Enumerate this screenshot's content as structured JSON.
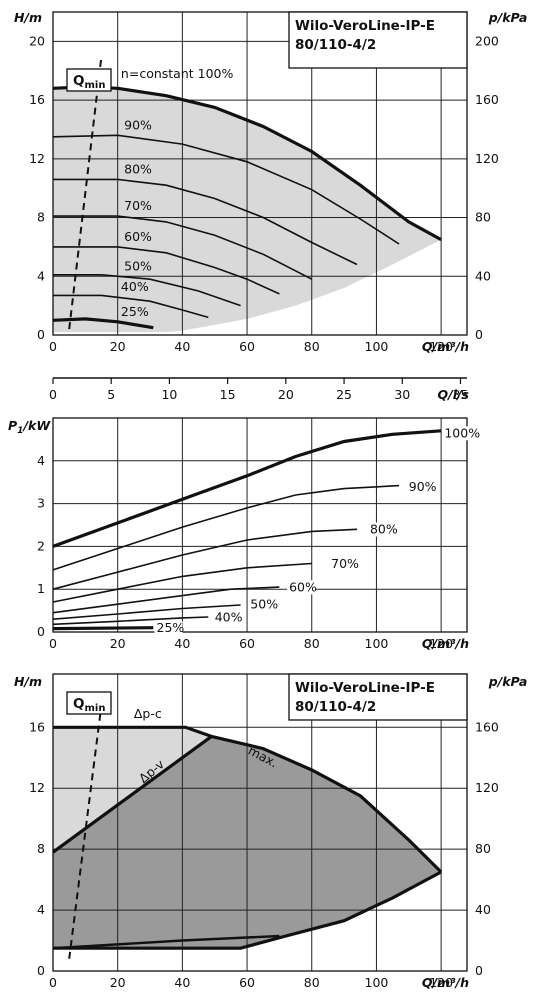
{
  "colors": {
    "field": "#d9d9d9",
    "field_dark": "#9a9a9a",
    "line": "#111111",
    "grid": "#222222"
  },
  "chart_data": [
    {
      "type": "line",
      "id": "head-speed",
      "title_line1": "Wilo-VeroLine-IP-E",
      "title_line2": "80/110-4/2",
      "xlabel": "Q/m³/h",
      "ylabel": "H/m",
      "y2label": "p/kPa",
      "xlim": [
        0,
        128
      ],
      "ylim": [
        0,
        22
      ],
      "y2lim": [
        0,
        220
      ],
      "xticks": [
        0,
        20,
        40,
        60,
        80,
        100,
        120
      ],
      "yticks": [
        0,
        4,
        8,
        12,
        16,
        20
      ],
      "y2ticks": [
        0,
        40,
        80,
        120,
        160,
        200
      ],
      "qmin_label": "Q",
      "qmin_sub": "min",
      "qmin_line": [
        [
          5,
          0.4
        ],
        [
          15,
          19
        ]
      ],
      "field_polygon": [
        [
          0,
          16.8
        ],
        [
          10,
          16.9
        ],
        [
          20,
          16.8
        ],
        [
          35,
          16.3
        ],
        [
          50,
          15.5
        ],
        [
          65,
          14.2
        ],
        [
          80,
          12.5
        ],
        [
          95,
          10.2
        ],
        [
          110,
          7.7
        ],
        [
          120,
          6.5
        ],
        [
          105,
          4.8
        ],
        [
          90,
          3.2
        ],
        [
          75,
          2.0
        ],
        [
          60,
          1.1
        ],
        [
          45,
          0.5
        ],
        [
          40,
          0.3
        ],
        [
          35,
          0.2
        ],
        [
          0,
          0.2
        ]
      ],
      "series": [
        {
          "label": "n=constant 100%",
          "bold": true,
          "points": [
            [
              0,
              16.8
            ],
            [
              10,
              16.9
            ],
            [
              20,
              16.8
            ],
            [
              35,
              16.3
            ],
            [
              50,
              15.5
            ],
            [
              65,
              14.2
            ],
            [
              80,
              12.5
            ],
            [
              95,
              10.2
            ],
            [
              110,
              7.7
            ],
            [
              120,
              6.5
            ]
          ],
          "label_at": [
            21,
            17.3
          ]
        },
        {
          "label": "90%",
          "bold": false,
          "points": [
            [
              0,
              13.5
            ],
            [
              20,
              13.6
            ],
            [
              40,
              13.0
            ],
            [
              60,
              11.8
            ],
            [
              80,
              9.9
            ],
            [
              95,
              7.9
            ],
            [
              107,
              6.2
            ]
          ],
          "label_at": [
            22,
            13.8
          ]
        },
        {
          "label": "80%",
          "bold": false,
          "points": [
            [
              0,
              10.6
            ],
            [
              20,
              10.6
            ],
            [
              35,
              10.2
            ],
            [
              50,
              9.3
            ],
            [
              65,
              8.0
            ],
            [
              80,
              6.3
            ],
            [
              94,
              4.8
            ]
          ],
          "label_at": [
            22,
            10.8
          ]
        },
        {
          "label": "70%",
          "bold": false,
          "points": [
            [
              0,
              8.1
            ],
            [
              20,
              8.1
            ],
            [
              35,
              7.7
            ],
            [
              50,
              6.8
            ],
            [
              65,
              5.5
            ],
            [
              80,
              3.8
            ]
          ],
          "label_at": [
            22,
            8.3
          ]
        },
        {
          "label": "60%",
          "bold": false,
          "points": [
            [
              0,
              6.0
            ],
            [
              20,
              6.0
            ],
            [
              35,
              5.6
            ],
            [
              50,
              4.6
            ],
            [
              60,
              3.8
            ],
            [
              70,
              2.8
            ]
          ],
          "label_at": [
            22,
            6.2
          ]
        },
        {
          "label": "50%",
          "bold": false,
          "points": [
            [
              0,
              4.1
            ],
            [
              15,
              4.1
            ],
            [
              30,
              3.8
            ],
            [
              45,
              3.0
            ],
            [
              58,
              2.0
            ]
          ],
          "label_at": [
            22,
            4.2
          ]
        },
        {
          "label": "40%",
          "bold": false,
          "points": [
            [
              0,
              2.7
            ],
            [
              15,
              2.7
            ],
            [
              30,
              2.3
            ],
            [
              40,
              1.7
            ],
            [
              48,
              1.2
            ]
          ],
          "label_at": [
            21,
            2.8
          ]
        },
        {
          "label": "25%",
          "bold": true,
          "points": [
            [
              0,
              1.0
            ],
            [
              10,
              1.1
            ],
            [
              20,
              0.9
            ],
            [
              31,
              0.5
            ]
          ],
          "label_at": [
            21,
            1.1
          ]
        }
      ]
    },
    {
      "type": "axis",
      "id": "flow-ls",
      "xlabel": "Q/l/s",
      "xlim": [
        0,
        35.56
      ],
      "xticks": [
        0,
        5,
        10,
        15,
        20,
        25,
        30,
        35
      ]
    },
    {
      "type": "line",
      "id": "power",
      "xlabel": "Q/m³/h",
      "ylabel_main": "P",
      "ylabel_sub": "1",
      "ylabel_unit": "/kW",
      "xlim": [
        0,
        128
      ],
      "ylim": [
        0,
        5
      ],
      "xticks": [
        0,
        20,
        40,
        60,
        80,
        100,
        120
      ],
      "yticks": [
        0,
        1,
        2,
        3,
        4
      ],
      "series": [
        {
          "label": "100%",
          "bold": true,
          "points": [
            [
              0,
              2.0
            ],
            [
              20,
              2.55
            ],
            [
              40,
              3.1
            ],
            [
              60,
              3.65
            ],
            [
              75,
              4.1
            ],
            [
              90,
              4.45
            ],
            [
              105,
              4.62
            ],
            [
              120,
              4.7
            ]
          ],
          "label_at": [
            121,
            4.55
          ]
        },
        {
          "label": "90%",
          "bold": false,
          "points": [
            [
              0,
              1.45
            ],
            [
              20,
              1.95
            ],
            [
              40,
              2.45
            ],
            [
              60,
              2.9
            ],
            [
              75,
              3.2
            ],
            [
              90,
              3.35
            ],
            [
              107,
              3.42
            ]
          ],
          "label_at": [
            110,
            3.3
          ]
        },
        {
          "label": "80%",
          "bold": false,
          "points": [
            [
              0,
              1.0
            ],
            [
              20,
              1.4
            ],
            [
              40,
              1.8
            ],
            [
              60,
              2.15
            ],
            [
              80,
              2.35
            ],
            [
              94,
              2.4
            ]
          ],
          "label_at": [
            98,
            2.3
          ]
        },
        {
          "label": "70%",
          "bold": false,
          "points": [
            [
              0,
              0.7
            ],
            [
              20,
              1.0
            ],
            [
              40,
              1.3
            ],
            [
              60,
              1.5
            ],
            [
              80,
              1.6
            ]
          ],
          "label_at": [
            86,
            1.5
          ]
        },
        {
          "label": "60%",
          "bold": false,
          "points": [
            [
              0,
              0.45
            ],
            [
              20,
              0.65
            ],
            [
              40,
              0.85
            ],
            [
              55,
              1.0
            ],
            [
              70,
              1.05
            ]
          ],
          "label_at": [
            73,
            0.95
          ]
        },
        {
          "label": "50%",
          "bold": false,
          "points": [
            [
              0,
              0.3
            ],
            [
              20,
              0.42
            ],
            [
              40,
              0.55
            ],
            [
              58,
              0.63
            ]
          ],
          "label_at": [
            61,
            0.55
          ]
        },
        {
          "label": "40%",
          "bold": false,
          "points": [
            [
              0,
              0.18
            ],
            [
              20,
              0.25
            ],
            [
              40,
              0.33
            ],
            [
              48,
              0.35
            ]
          ],
          "label_at": [
            50,
            0.25
          ]
        },
        {
          "label": "25%",
          "bold": true,
          "points": [
            [
              0,
              0.08
            ],
            [
              31,
              0.1
            ]
          ],
          "label_at": [
            32,
            0.0
          ]
        }
      ]
    },
    {
      "type": "area",
      "id": "control-modes",
      "title_line1": "Wilo-VeroLine-IP-E",
      "title_line2": "80/110-4/2",
      "xlabel": "Q/m³/h",
      "ylabel": "H/m",
      "y2label": "p/kPa",
      "xlim": [
        0,
        128
      ],
      "ylim": [
        0,
        19.5
      ],
      "y2lim": [
        0,
        195
      ],
      "xticks": [
        0,
        20,
        40,
        60,
        80,
        100,
        120
      ],
      "yticks": [
        0,
        4,
        8,
        12,
        16
      ],
      "y2ticks": [
        0,
        40,
        80,
        120,
        160
      ],
      "qmin_label": "Q",
      "qmin_sub": "min",
      "qmin_line": [
        [
          5,
          0.8
        ],
        [
          15,
          17.5
        ]
      ],
      "labels": [
        {
          "text": "Δp-c",
          "at": [
            25,
            16.6
          ],
          "rotate": 0
        },
        {
          "text": "Δp-v",
          "at": [
            28,
            12.3
          ],
          "rotate": -40
        },
        {
          "text": "max.",
          "at": [
            60,
            14.3
          ],
          "rotate": 28
        }
      ],
      "light_region": [
        [
          0,
          16
        ],
        [
          41,
          16
        ],
        [
          49,
          15.4
        ],
        [
          0,
          7.8
        ]
      ],
      "dark_region": [
        [
          0,
          7.8
        ],
        [
          49,
          15.4
        ],
        [
          65,
          14.6
        ],
        [
          80,
          13.2
        ],
        [
          95,
          11.5
        ],
        [
          110,
          8.6
        ],
        [
          120,
          6.5
        ],
        [
          105,
          4.8
        ],
        [
          90,
          3.3
        ],
        [
          72,
          2.3
        ],
        [
          58,
          1.5
        ],
        [
          0,
          1.5
        ]
      ],
      "max_curve": [
        [
          49,
          15.4
        ],
        [
          65,
          14.6
        ],
        [
          80,
          13.2
        ],
        [
          95,
          11.5
        ],
        [
          110,
          8.6
        ],
        [
          120,
          6.5
        ]
      ],
      "dpc_line": [
        [
          0,
          16
        ],
        [
          41,
          16
        ],
        [
          49,
          15.4
        ]
      ],
      "dpv_line": [
        [
          0,
          7.8
        ],
        [
          49,
          15.4
        ]
      ],
      "min_curve": [
        [
          120,
          6.5
        ],
        [
          105,
          4.8
        ],
        [
          90,
          3.3
        ],
        [
          72,
          2.3
        ],
        [
          58,
          1.5
        ],
        [
          0,
          1.5
        ]
      ],
      "min_curve_lower": [
        [
          0,
          1.5
        ],
        [
          58,
          1.5
        ],
        [
          72,
          2.3
        ]
      ],
      "min_curve_inner": [
        [
          0,
          1.5
        ],
        [
          40,
          2.0
        ],
        [
          70,
          2.3
        ]
      ]
    }
  ]
}
